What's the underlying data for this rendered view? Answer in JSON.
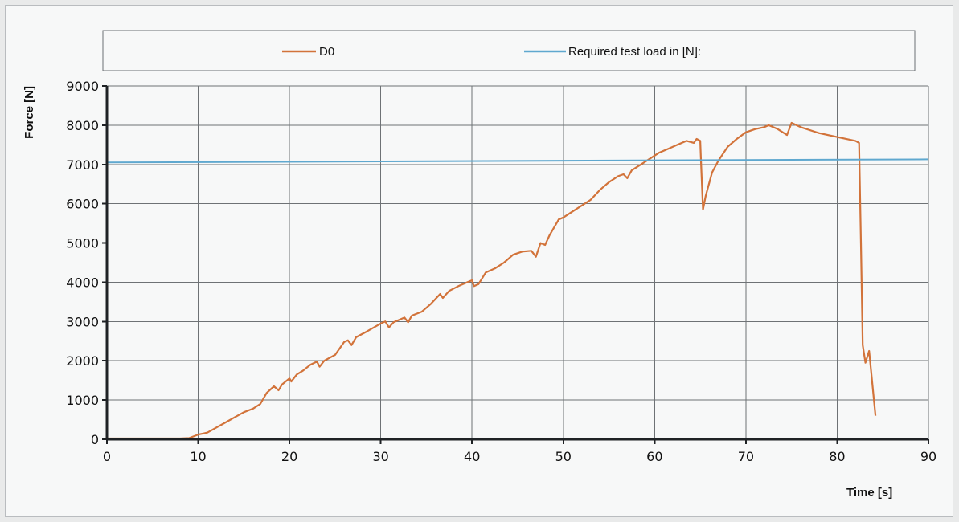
{
  "chart_data": {
    "type": "line",
    "title": "",
    "xlabel": "Time [s]",
    "ylabel": "Force [N]",
    "xlim": [
      0,
      90
    ],
    "ylim": [
      0,
      9000
    ],
    "x_ticks": [
      "0",
      "10",
      "20",
      "30",
      "40",
      "50",
      "60",
      "70",
      "80",
      "90"
    ],
    "y_ticks": [
      "0",
      "1000",
      "2000",
      "3000",
      "4000",
      "5000",
      "6000",
      "7000",
      "8000",
      "9000"
    ],
    "grid": true,
    "legend": {
      "placement": "top",
      "entries": [
        "D0",
        "Required test load in [N]:"
      ]
    },
    "series": [
      {
        "name": "D0",
        "color": "#d2733a",
        "points": [
          [
            0,
            20
          ],
          [
            8,
            20
          ],
          [
            9,
            30
          ],
          [
            10,
            120
          ],
          [
            11,
            170
          ],
          [
            12,
            300
          ],
          [
            13,
            430
          ],
          [
            14,
            560
          ],
          [
            15,
            690
          ],
          [
            16,
            780
          ],
          [
            16.8,
            900
          ],
          [
            17.5,
            1180
          ],
          [
            18.3,
            1350
          ],
          [
            18.8,
            1250
          ],
          [
            19.2,
            1400
          ],
          [
            20,
            1550
          ],
          [
            20.2,
            1470
          ],
          [
            20.8,
            1650
          ],
          [
            21.5,
            1750
          ],
          [
            22.3,
            1900
          ],
          [
            23,
            1980
          ],
          [
            23.3,
            1850
          ],
          [
            23.8,
            2000
          ],
          [
            25,
            2150
          ],
          [
            26,
            2480
          ],
          [
            26.4,
            2520
          ],
          [
            26.8,
            2400
          ],
          [
            27.3,
            2600
          ],
          [
            28.5,
            2750
          ],
          [
            30,
            2950
          ],
          [
            30.5,
            3000
          ],
          [
            30.9,
            2850
          ],
          [
            31.4,
            2980
          ],
          [
            32.6,
            3100
          ],
          [
            33,
            2980
          ],
          [
            33.4,
            3150
          ],
          [
            34.5,
            3250
          ],
          [
            35.5,
            3450
          ],
          [
            36.5,
            3700
          ],
          [
            36.8,
            3600
          ],
          [
            37.5,
            3780
          ],
          [
            38.5,
            3900
          ],
          [
            39.5,
            4000
          ],
          [
            40,
            4050
          ],
          [
            40.2,
            3900
          ],
          [
            40.7,
            3950
          ],
          [
            41.5,
            4250
          ],
          [
            42.5,
            4350
          ],
          [
            43.5,
            4500
          ],
          [
            44.5,
            4700
          ],
          [
            45.5,
            4780
          ],
          [
            46.5,
            4800
          ],
          [
            47,
            4650
          ],
          [
            47.5,
            5000
          ],
          [
            48,
            4950
          ],
          [
            48.5,
            5200
          ],
          [
            49.5,
            5600
          ],
          [
            50,
            5650
          ],
          [
            51,
            5800
          ],
          [
            52,
            5950
          ],
          [
            53,
            6100
          ],
          [
            54,
            6350
          ],
          [
            55,
            6550
          ],
          [
            56,
            6700
          ],
          [
            56.6,
            6750
          ],
          [
            57,
            6650
          ],
          [
            57.5,
            6850
          ],
          [
            58.5,
            7000
          ],
          [
            59.5,
            7150
          ],
          [
            60.5,
            7300
          ],
          [
            61.5,
            7400
          ],
          [
            62.5,
            7500
          ],
          [
            63.5,
            7600
          ],
          [
            64.3,
            7550
          ],
          [
            64.6,
            7650
          ],
          [
            65,
            7600
          ],
          [
            65.1,
            7000
          ],
          [
            65.3,
            5850
          ],
          [
            65.6,
            6200
          ],
          [
            66.3,
            6800
          ],
          [
            67,
            7100
          ],
          [
            68,
            7450
          ],
          [
            69,
            7650
          ],
          [
            70,
            7820
          ],
          [
            71,
            7900
          ],
          [
            72,
            7950
          ],
          [
            72.5,
            8000
          ],
          [
            73.5,
            7900
          ],
          [
            74.5,
            7750
          ],
          [
            75,
            8060
          ],
          [
            76,
            7950
          ],
          [
            78,
            7800
          ],
          [
            80,
            7700
          ],
          [
            82,
            7600
          ],
          [
            82.4,
            7550
          ],
          [
            82.6,
            5000
          ],
          [
            82.8,
            2400
          ],
          [
            83.1,
            1950
          ],
          [
            83.5,
            2250
          ],
          [
            84.2,
            600
          ]
        ]
      },
      {
        "name": "Required test load in [N]:",
        "color": "#5fa8cf",
        "points": [
          [
            0,
            7050
          ],
          [
            90,
            7130
          ]
        ]
      }
    ]
  }
}
